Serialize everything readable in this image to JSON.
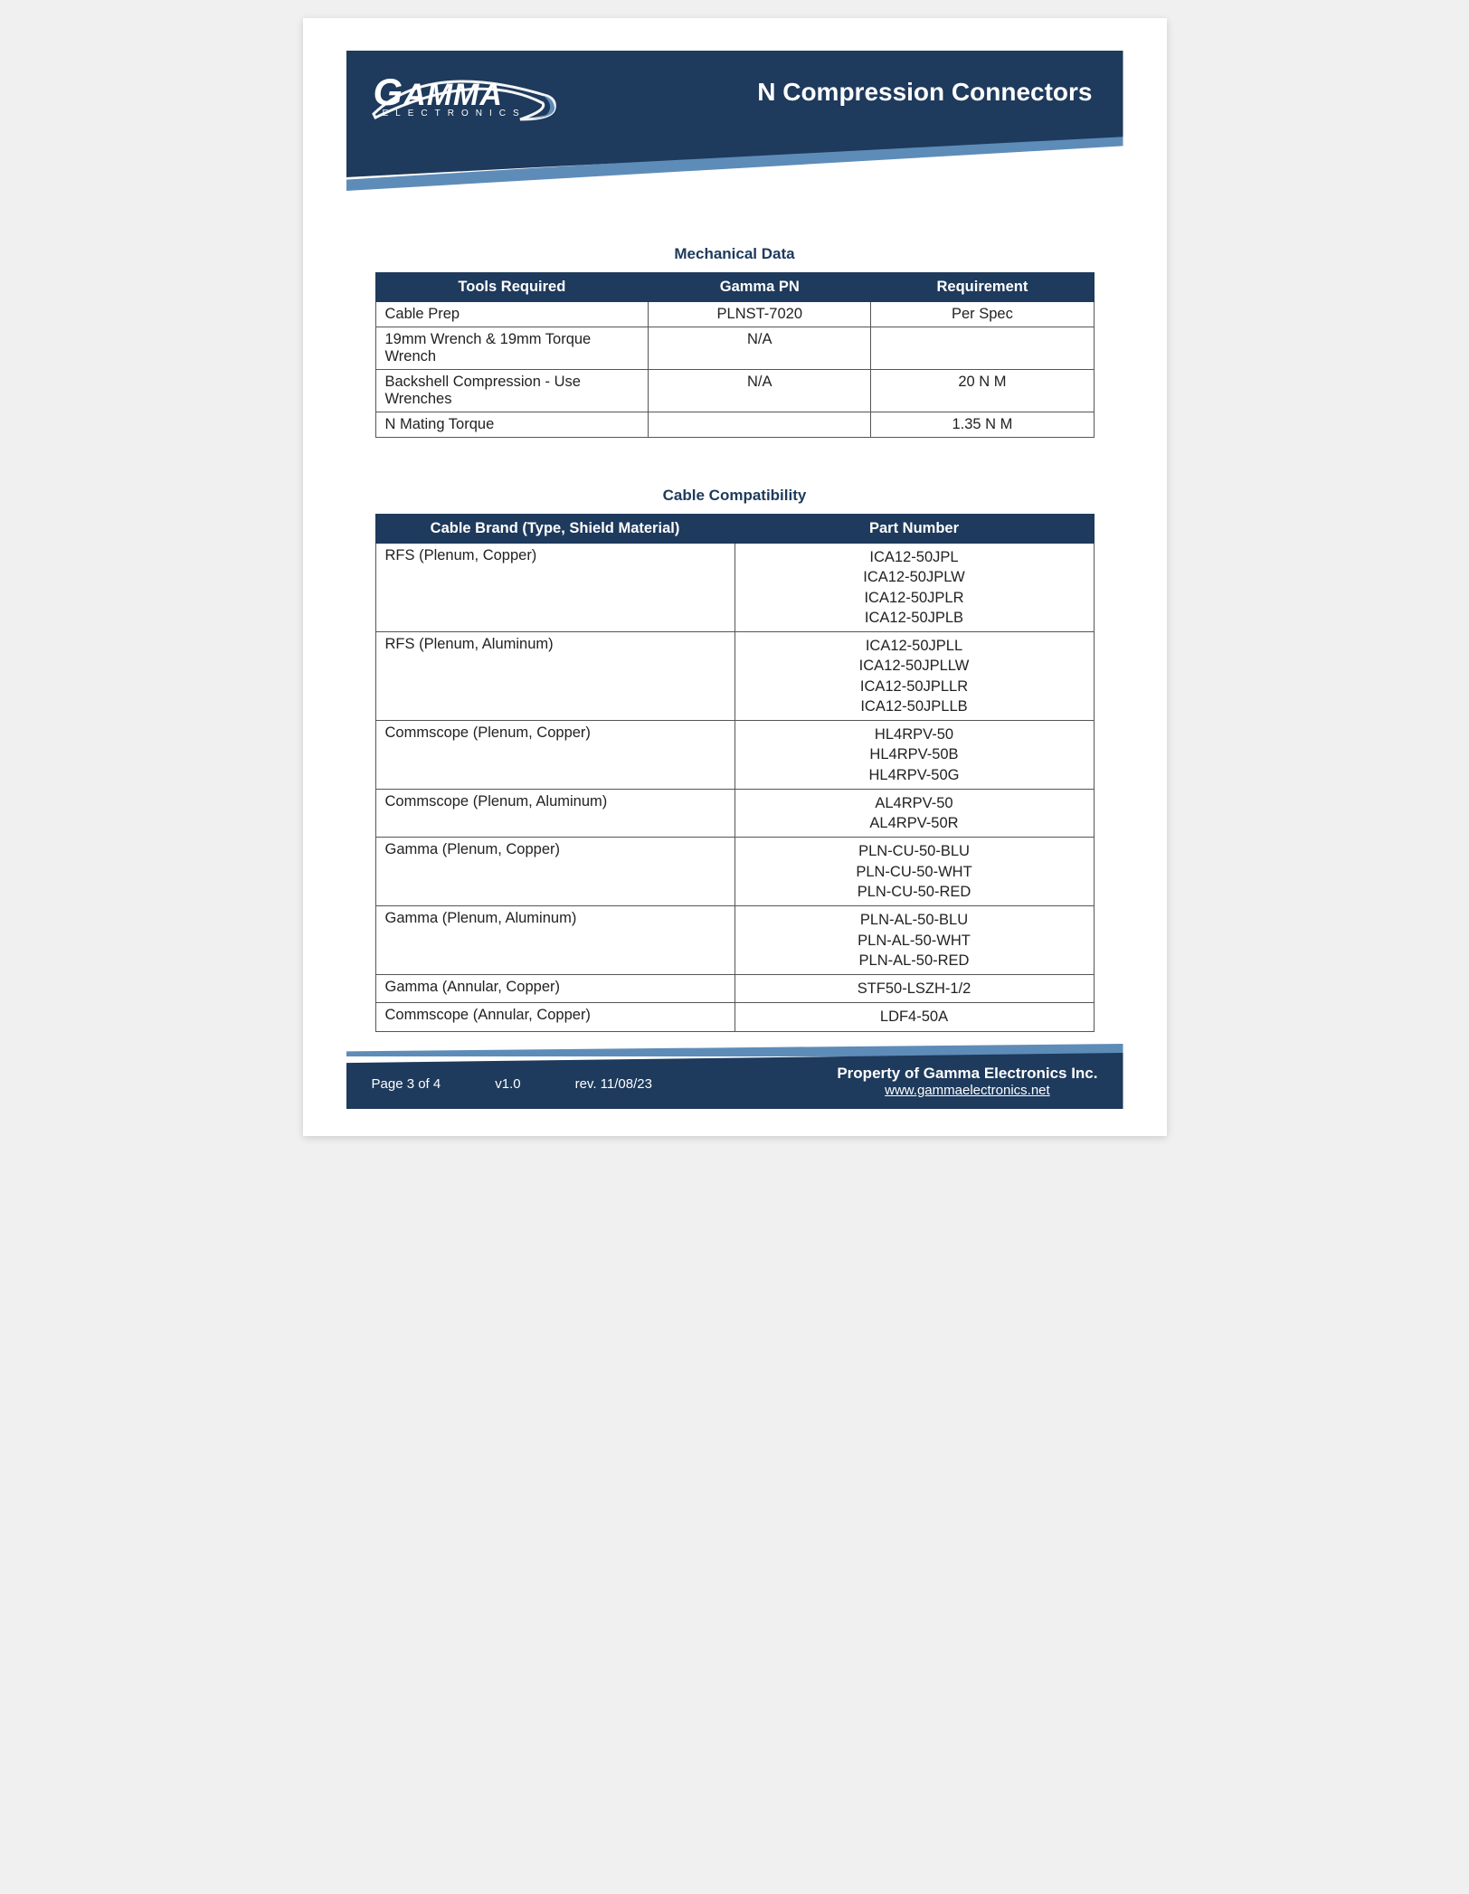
{
  "colors": {
    "brand_dark": "#1e3a5c",
    "brand_light": "#5e8cb8",
    "page_bg": "#ffffff",
    "body_bg": "#f0f0f0",
    "text": "#222222",
    "border": "#555555"
  },
  "header": {
    "logo_main": "GAMMA",
    "logo_sub": "ELECTRONICS",
    "title": "N Compression Connectors"
  },
  "mechanical": {
    "title": "Mechanical Data",
    "columns": [
      "Tools Required",
      "Gamma PN",
      "Requirement"
    ],
    "rows": [
      [
        "Cable Prep",
        "PLNST-7020",
        "Per Spec"
      ],
      [
        "19mm Wrench & 19mm Torque Wrench",
        "N/A",
        ""
      ],
      [
        "Backshell Compression - Use Wrenches",
        "N/A",
        "20 N M"
      ],
      [
        "N Mating Torque",
        "",
        "1.35 N M"
      ]
    ],
    "col_widths": [
      "38%",
      "31%",
      "31%"
    ]
  },
  "compatibility": {
    "title": "Cable Compatibility",
    "columns": [
      "Cable Brand (Type, Shield Material)",
      "Part Number"
    ],
    "rows": [
      {
        "brand": "RFS (Plenum, Copper)",
        "parts": [
          "ICA12-50JPL",
          "ICA12-50JPLW",
          "ICA12-50JPLR",
          "ICA12-50JPLB"
        ]
      },
      {
        "brand": "RFS (Plenum, Aluminum)",
        "parts": [
          "ICA12-50JPLL",
          "ICA12-50JPLLW",
          "ICA12-50JPLLR",
          "ICA12-50JPLLB"
        ]
      },
      {
        "brand": "Commscope (Plenum, Copper)",
        "parts": [
          "HL4RPV-50",
          "HL4RPV-50B",
          "HL4RPV-50G"
        ]
      },
      {
        "brand": "Commscope (Plenum, Aluminum)",
        "parts": [
          "AL4RPV-50",
          "AL4RPV-50R"
        ]
      },
      {
        "brand": "Gamma (Plenum, Copper)",
        "parts": [
          "PLN-CU-50-BLU",
          "PLN-CU-50-WHT",
          "PLN-CU-50-RED"
        ]
      },
      {
        "brand": "Gamma (Plenum, Aluminum)",
        "parts": [
          "PLN-AL-50-BLU",
          "PLN-AL-50-WHT",
          "PLN-AL-50-RED"
        ]
      },
      {
        "brand": "Gamma (Annular, Copper)",
        "parts": [
          "STF50-LSZH-1/2"
        ]
      },
      {
        "brand": "Commscope (Annular, Copper)",
        "parts": [
          "LDF4-50A"
        ]
      }
    ],
    "col_widths": [
      "50%",
      "50%"
    ]
  },
  "footer": {
    "page": "Page 3 of 4",
    "version": "v1.0",
    "revision": "rev. 11/08/23",
    "property": "Property of Gamma Electronics Inc.",
    "url": "www.gammaelectronics.net"
  }
}
